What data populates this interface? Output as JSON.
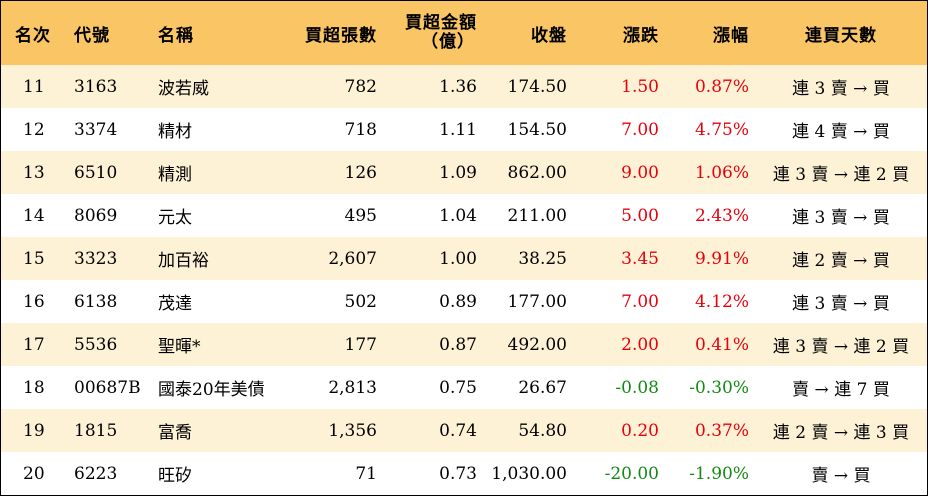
{
  "headers": {
    "rank": "名次",
    "code": "代號",
    "name": "名稱",
    "net_lots": "買超張數",
    "net_amount_line1": "買超金額",
    "net_amount_line2": "（億）",
    "close": "收盤",
    "change": "漲跌",
    "pct": "漲幅",
    "streak": "連買天數"
  },
  "colors": {
    "up": "#e8000b",
    "down": "#138a13",
    "header_bg": "#f9c565",
    "stripe_bg": "#fdf1d6"
  },
  "rows": [
    {
      "rank": "11",
      "code": "3163",
      "name": "波若威",
      "lots": "782",
      "amount": "1.36",
      "close": "174.50",
      "change": "1.50",
      "pct": "0.87%",
      "streak": "連 3 賣 → 買",
      "dir": "up"
    },
    {
      "rank": "12",
      "code": "3374",
      "name": "精材",
      "lots": "718",
      "amount": "1.11",
      "close": "154.50",
      "change": "7.00",
      "pct": "4.75%",
      "streak": "連 4 賣 → 買",
      "dir": "up"
    },
    {
      "rank": "13",
      "code": "6510",
      "name": "精測",
      "lots": "126",
      "amount": "1.09",
      "close": "862.00",
      "change": "9.00",
      "pct": "1.06%",
      "streak": "連 3 賣 → 連 2 買",
      "dir": "up"
    },
    {
      "rank": "14",
      "code": "8069",
      "name": "元太",
      "lots": "495",
      "amount": "1.04",
      "close": "211.00",
      "change": "5.00",
      "pct": "2.43%",
      "streak": "連 3 賣 → 買",
      "dir": "up"
    },
    {
      "rank": "15",
      "code": "3323",
      "name": "加百裕",
      "lots": "2,607",
      "amount": "1.00",
      "close": "38.25",
      "change": "3.45",
      "pct": "9.91%",
      "streak": "連 2 賣 → 買",
      "dir": "up"
    },
    {
      "rank": "16",
      "code": "6138",
      "name": "茂達",
      "lots": "502",
      "amount": "0.89",
      "close": "177.00",
      "change": "7.00",
      "pct": "4.12%",
      "streak": "連 3 賣 → 買",
      "dir": "up"
    },
    {
      "rank": "17",
      "code": "5536",
      "name": "聖暉*",
      "lots": "177",
      "amount": "0.87",
      "close": "492.00",
      "change": "2.00",
      "pct": "0.41%",
      "streak": "連 3 賣 → 連 2 買",
      "dir": "up"
    },
    {
      "rank": "18",
      "code": "00687B",
      "name": "國泰20年美債",
      "lots": "2,813",
      "amount": "0.75",
      "close": "26.67",
      "change": "-0.08",
      "pct": "-0.30%",
      "streak": "賣 → 連 7 買",
      "dir": "down"
    },
    {
      "rank": "19",
      "code": "1815",
      "name": "富喬",
      "lots": "1,356",
      "amount": "0.74",
      "close": "54.80",
      "change": "0.20",
      "pct": "0.37%",
      "streak": "連 2 賣 → 連 3 買",
      "dir": "up"
    },
    {
      "rank": "20",
      "code": "6223",
      "name": "旺矽",
      "lots": "71",
      "amount": "0.73",
      "close": "1,030.00",
      "change": "-20.00",
      "pct": "-1.90%",
      "streak": "賣 → 買",
      "dir": "down"
    }
  ]
}
